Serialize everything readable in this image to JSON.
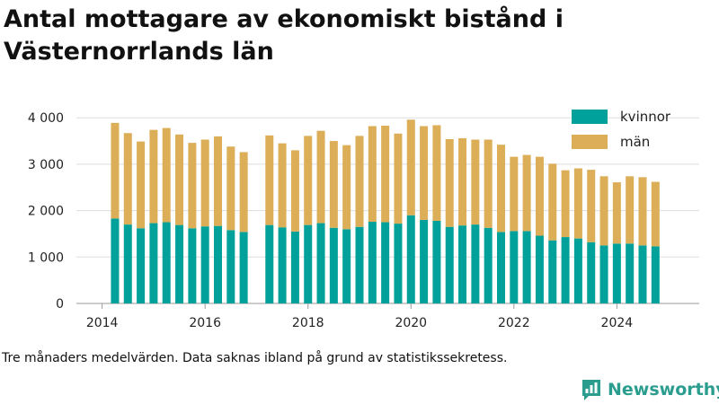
{
  "title": "Antal mottagare av ekonomiskt bistånd i Västernorrlands län",
  "caption": "Tre månaders medelvärden. Data saknas ibland på grund av statistikssekretess.",
  "brand": {
    "name": "Newsworthy",
    "icon": "bar-chart-speech-bubble-icon",
    "color": "#2a9d8f"
  },
  "chart_data": {
    "type": "bar",
    "stacked": true,
    "title": "",
    "xlabel": "",
    "ylabel": "",
    "x_ticks": [
      "2014",
      "2016",
      "2018",
      "2020",
      "2022",
      "2024"
    ],
    "y_ticks": [
      "0",
      "1 000",
      "2 000",
      "3 000",
      "4 000"
    ],
    "xlim": [
      2013.5,
      2025.6
    ],
    "ylim": [
      0,
      4300
    ],
    "grid": "horizontal",
    "legend_position": "top-right",
    "colors": {
      "kvinnor": "#00a19a",
      "man": "#dcae58"
    },
    "x": [
      2014.25,
      2014.5,
      2014.75,
      2015.0,
      2015.25,
      2015.5,
      2015.75,
      2016.0,
      2016.25,
      2016.5,
      2016.75,
      2017.25,
      2017.5,
      2017.75,
      2018.0,
      2018.25,
      2018.5,
      2018.75,
      2019.0,
      2019.25,
      2019.5,
      2019.75,
      2020.0,
      2020.25,
      2020.5,
      2020.75,
      2021.0,
      2021.25,
      2021.5,
      2021.75,
      2022.0,
      2022.25,
      2022.5,
      2022.75,
      2023.0,
      2023.25,
      2023.5,
      2023.75,
      2024.0,
      2024.25,
      2024.5,
      2024.75
    ],
    "series": [
      {
        "name": "kvinnor",
        "values": [
          1830,
          1700,
          1620,
          1730,
          1750,
          1690,
          1620,
          1660,
          1670,
          1580,
          1540,
          1690,
          1640,
          1550,
          1690,
          1730,
          1630,
          1600,
          1650,
          1760,
          1750,
          1720,
          1900,
          1800,
          1780,
          1650,
          1680,
          1700,
          1630,
          1540,
          1560,
          1560,
          1460,
          1360,
          1430,
          1400,
          1320,
          1250,
          1290,
          1290,
          1250,
          1230
        ]
      },
      {
        "name": "män",
        "values": [
          2060,
          1970,
          1870,
          2010,
          2030,
          1950,
          1840,
          1870,
          1930,
          1800,
          1720,
          1930,
          1810,
          1750,
          1920,
          1990,
          1870,
          1810,
          1960,
          2060,
          2080,
          1940,
          2060,
          2020,
          2060,
          1890,
          1880,
          1830,
          1900,
          1880,
          1600,
          1640,
          1700,
          1650,
          1440,
          1510,
          1560,
          1490,
          1320,
          1450,
          1470,
          1390
        ]
      }
    ]
  }
}
